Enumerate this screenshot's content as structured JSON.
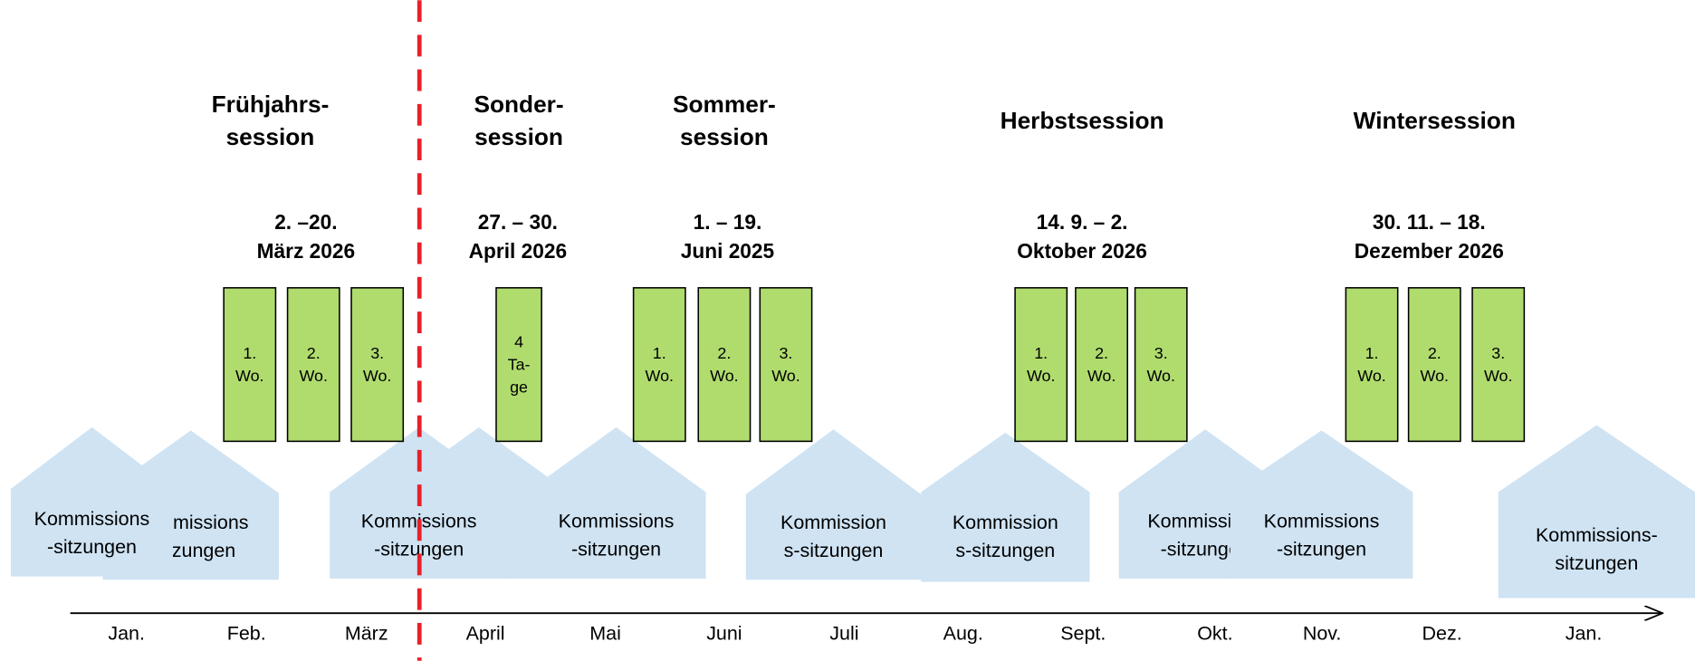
{
  "sessions": [
    {
      "title": [
        "Frühjahrs-",
        "session"
      ],
      "dates": [
        "2. –20.",
        "März 2026"
      ],
      "weeks": [
        [
          "1.",
          "Wo."
        ],
        [
          "2.",
          "Wo."
        ],
        [
          "3.",
          "Wo."
        ]
      ]
    },
    {
      "title": [
        "Sonder-",
        "session"
      ],
      "dates": [
        "27. – 30.",
        "April 2026"
      ],
      "weeks": [
        [
          "4",
          "Ta-",
          "ge"
        ]
      ]
    },
    {
      "title": [
        "Sommer-",
        "session"
      ],
      "dates": [
        "1. – 19.",
        "Juni 2025"
      ],
      "weeks": [
        [
          "1.",
          "Wo."
        ],
        [
          "2.",
          "Wo."
        ],
        [
          "3.",
          "Wo."
        ]
      ]
    },
    {
      "title": [
        "Herbstsession"
      ],
      "dates": [
        "14. 9. – 2.",
        "Oktober 2026"
      ],
      "weeks": [
        [
          "1.",
          "Wo."
        ],
        [
          "2.",
          "Wo."
        ],
        [
          "3.",
          "Wo."
        ]
      ]
    },
    {
      "title": [
        "Wintersession"
      ],
      "dates": [
        "30. 11. – 18.",
        "Dezember 2026"
      ],
      "weeks": [
        [
          "1.",
          "Wo."
        ],
        [
          "2.",
          "Wo."
        ],
        [
          "3.",
          "Wo."
        ]
      ]
    }
  ],
  "commissions": [
    [
      "Kommissions",
      "-sitzungen"
    ],
    [
      "Kommissions",
      "-sitzungen"
    ],
    [
      "Kommissions",
      "-sitzungen"
    ],
    [
      "Kommissions",
      "-sitzungen"
    ],
    [
      "Kommission",
      "s-sitzungen"
    ],
    [
      "Kommission",
      "s-sitzungen"
    ],
    [
      "Kommissions",
      "-sitzungen"
    ],
    [
      "Kommissions",
      "-sitzungen"
    ],
    [
      "Kommissions-",
      "sitzungen"
    ]
  ],
  "months": [
    "Jan.",
    "Feb.",
    "März",
    "April",
    "Mai",
    "Juni",
    "Juli",
    "Aug.",
    "Sept.",
    "Okt.",
    "Nov.",
    "Dez.",
    "Jan."
  ]
}
